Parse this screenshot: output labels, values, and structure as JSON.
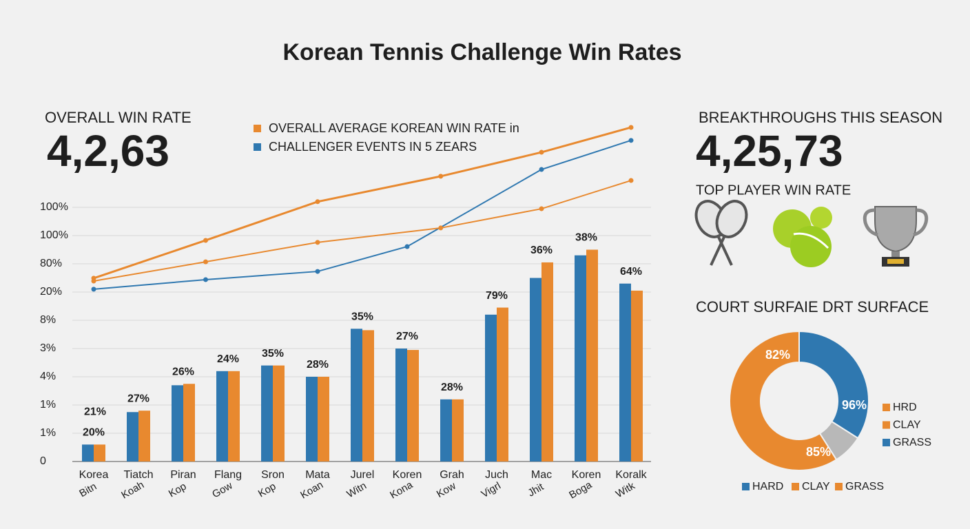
{
  "title": "Korean Tennis Challenge Win Rates",
  "kpis": [
    {
      "label": "OVERALL WIN RATE",
      "value": "4,2,63"
    },
    {
      "label": "BREAKTHROUGHS THIS SEASON",
      "value": "4,25,73"
    }
  ],
  "icons_label": "TOP PLAYER WIN RATE",
  "chart_data": [
    {
      "type": "bar",
      "categories": [
        "Korea",
        "Tiatch",
        "Piran",
        "Flang",
        "Sron",
        "Mata",
        "Jurel",
        "Koren",
        "Grah",
        "Juch",
        "Mac",
        "Koren",
        "Koralk"
      ],
      "subcategories": [
        "Bitn",
        "Koah",
        "Kop",
        "Gow",
        "Kop",
        "Koan",
        "Witn",
        "Kona",
        "Kow",
        "Vigrl",
        "Jhit",
        "Boga",
        "Witk"
      ],
      "series": [
        {
          "color": "#2f78b0",
          "values": [
            0.6,
            1.75,
            2.7,
            3.2,
            3.4,
            3.0,
            4.7,
            4.0,
            2.2,
            5.2,
            6.5,
            7.3,
            6.3
          ]
        },
        {
          "color": "#e8892f",
          "values": [
            0.6,
            1.8,
            2.75,
            3.2,
            3.4,
            3.0,
            4.65,
            3.95,
            2.2,
            5.45,
            7.05,
            7.5,
            6.05
          ]
        }
      ],
      "bar_labels": [
        "20%",
        "27%",
        "26%",
        "24%",
        "35%",
        "28%",
        "35%",
        "27%",
        "28%",
        "79%",
        "36%",
        "38%",
        "64%"
      ],
      "annotations": [
        "21%"
      ],
      "lines": [
        {
          "name": "OVERALL AVERAGE KOREAN WIN RATE in",
          "color": "#e8892f",
          "x": [
            0,
            2.5,
            5,
            7.75,
            10,
            12
          ],
          "values": [
            6.49,
            7.83,
            9.2,
            10.1,
            10.95,
            11.83
          ]
        },
        {
          "name": "CHALLENGER EVENTS IN 5 ZEARS",
          "color": "#2f78b0",
          "x": [
            0,
            2.5,
            5,
            7,
            10,
            12
          ],
          "values": [
            6.1,
            6.44,
            6.73,
            7.61,
            10.34,
            11.37
          ]
        },
        {
          "color": "#e8892f",
          "x": [
            0,
            2.5,
            5,
            7.75,
            10,
            12
          ],
          "values": [
            6.39,
            7.07,
            7.76,
            8.27,
            8.95,
            9.95
          ]
        }
      ],
      "ylim": [
        0,
        12
      ],
      "yticks": [
        0,
        {
          "value": 1,
          "label": "1%"
        },
        {
          "value": 2,
          "label": "1%"
        },
        {
          "value": 3,
          "label": "4%"
        },
        {
          "value": 4,
          "label": "3%"
        },
        {
          "value": 5,
          "label": "8%"
        },
        {
          "value": 6,
          "label": "20%"
        },
        {
          "value": 7,
          "label": "80%"
        },
        {
          "value": 8,
          "label": "100%"
        },
        {
          "value": 9,
          "label": "100%"
        }
      ],
      "grid": true
    },
    {
      "type": "donut",
      "title": "COURT SURFAIE DRT SURFACE",
      "values": [
        34,
        7,
        59
      ],
      "colors": [
        "#2f78b0",
        "#b8b8b8",
        "#e8892f"
      ],
      "slice_labels": [
        "96%",
        "85%",
        "82%"
      ],
      "legend_right": [
        {
          "label": "HRD",
          "color": "#e8892f"
        },
        {
          "label": "CLAY",
          "color": "#e8892f"
        },
        {
          "label": "GRASS",
          "color": "#2f78b0"
        }
      ],
      "legend_bottom": [
        {
          "label": "HARD",
          "color": "#2f78b0"
        },
        {
          "label": "CLAY",
          "color": "#e8892f"
        },
        {
          "label": "GRASS",
          "color": "#e8892f"
        }
      ]
    }
  ]
}
